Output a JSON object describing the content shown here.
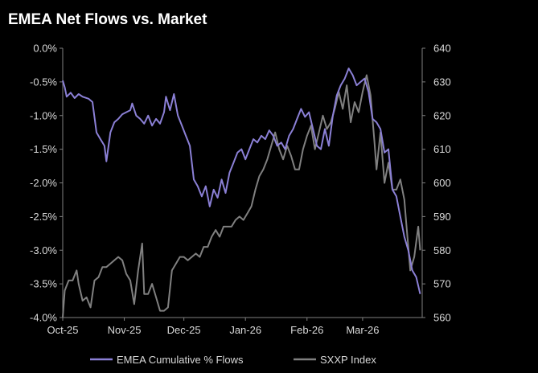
{
  "chart_data": {
    "type": "line",
    "title": "EMEA Net Flows vs. Market",
    "background": "#000000",
    "grid": false,
    "legend_position": "bottom",
    "x_axis": {
      "range": [
        "2025-10-01",
        "2026-03-31"
      ],
      "tick_labels": [
        "Oct-25",
        "Nov-25",
        "Dec-25",
        "Jan-26",
        "Feb-26",
        "Mar-26"
      ],
      "tick_dates": [
        "2025-10-01",
        "2025-11-01",
        "2025-12-01",
        "2026-01-01",
        "2026-02-01",
        "2026-03-01"
      ]
    },
    "y_left": {
      "range": [
        -4.0,
        0.0
      ],
      "ticks": [
        0.0,
        -0.5,
        -1.0,
        -1.5,
        -2.0,
        -2.5,
        -3.0,
        -3.5,
        -4.0
      ],
      "tick_labels": [
        "0.0%",
        "-0.5%",
        "-1.0%",
        "-1.5%",
        "-2.0%",
        "-2.5%",
        "-3.0%",
        "-3.5%",
        "-4.0%"
      ]
    },
    "y_right": {
      "range": [
        560,
        640
      ],
      "ticks": [
        640,
        630,
        620,
        610,
        600,
        590,
        580,
        570,
        560
      ],
      "tick_labels": [
        "640",
        "630",
        "620",
        "610",
        "600",
        "590",
        "580",
        "570",
        "560"
      ]
    },
    "series": [
      {
        "name": "EMEA Cumulative % Flows",
        "axis": "left",
        "color": "#8b80d6",
        "points": [
          [
            "2025-10-01",
            -0.48
          ],
          [
            "2025-10-02",
            -0.58
          ],
          [
            "2025-10-03",
            -0.72
          ],
          [
            "2025-10-05",
            -0.66
          ],
          [
            "2025-10-07",
            -0.74
          ],
          [
            "2025-10-09",
            -0.68
          ],
          [
            "2025-10-11",
            -0.72
          ],
          [
            "2025-10-14",
            -0.75
          ],
          [
            "2025-10-16",
            -0.8
          ],
          [
            "2025-10-18",
            -1.25
          ],
          [
            "2025-10-20",
            -1.35
          ],
          [
            "2025-10-22",
            -1.45
          ],
          [
            "2025-10-23",
            -1.68
          ],
          [
            "2025-10-25",
            -1.25
          ],
          [
            "2025-10-27",
            -1.1
          ],
          [
            "2025-10-29",
            -1.05
          ],
          [
            "2025-10-31",
            -0.98
          ],
          [
            "2025-11-02",
            -0.95
          ],
          [
            "2025-11-04",
            -0.92
          ],
          [
            "2025-11-05",
            -0.82
          ],
          [
            "2025-11-07",
            -1.0
          ],
          [
            "2025-11-09",
            -1.05
          ],
          [
            "2025-11-11",
            -1.12
          ],
          [
            "2025-11-13",
            -1.0
          ],
          [
            "2025-11-15",
            -1.15
          ],
          [
            "2025-11-17",
            -1.05
          ],
          [
            "2025-11-19",
            -1.12
          ],
          [
            "2025-11-21",
            -0.95
          ],
          [
            "2025-11-22",
            -0.72
          ],
          [
            "2025-11-24",
            -0.92
          ],
          [
            "2025-11-26",
            -0.68
          ],
          [
            "2025-11-28",
            -1.0
          ],
          [
            "2025-11-30",
            -1.15
          ],
          [
            "2025-12-02",
            -1.3
          ],
          [
            "2025-12-04",
            -1.45
          ],
          [
            "2025-12-06",
            -1.95
          ],
          [
            "2025-12-08",
            -2.05
          ],
          [
            "2025-12-10",
            -2.2
          ],
          [
            "2025-12-12",
            -2.05
          ],
          [
            "2025-12-14",
            -2.35
          ],
          [
            "2025-12-16",
            -2.1
          ],
          [
            "2025-12-18",
            -2.22
          ],
          [
            "2025-12-20",
            -1.95
          ],
          [
            "2025-12-22",
            -2.15
          ],
          [
            "2025-12-24",
            -1.85
          ],
          [
            "2025-12-26",
            -1.7
          ],
          [
            "2025-12-28",
            -1.55
          ],
          [
            "2025-12-30",
            -1.5
          ],
          [
            "2026-01-01",
            -1.65
          ],
          [
            "2026-01-03",
            -1.5
          ],
          [
            "2026-01-05",
            -1.35
          ],
          [
            "2026-01-07",
            -1.4
          ],
          [
            "2026-01-09",
            -1.3
          ],
          [
            "2026-01-11",
            -1.35
          ],
          [
            "2026-01-13",
            -1.22
          ],
          [
            "2026-01-15",
            -1.3
          ],
          [
            "2026-01-17",
            -1.45
          ],
          [
            "2026-01-19",
            -1.4
          ],
          [
            "2026-01-21",
            -1.5
          ],
          [
            "2026-01-23",
            -1.3
          ],
          [
            "2026-01-25",
            -1.2
          ],
          [
            "2026-01-27",
            -1.05
          ],
          [
            "2026-01-29",
            -0.9
          ],
          [
            "2026-01-31",
            -1.02
          ],
          [
            "2026-02-02",
            -0.95
          ],
          [
            "2026-02-04",
            -1.2
          ],
          [
            "2026-02-06",
            -1.45
          ],
          [
            "2026-02-08",
            -1.5
          ],
          [
            "2026-02-10",
            -1.2
          ],
          [
            "2026-02-12",
            -1.45
          ],
          [
            "2026-02-14",
            -1.0
          ],
          [
            "2026-02-16",
            -0.7
          ],
          [
            "2026-02-18",
            -0.55
          ],
          [
            "2026-02-20",
            -0.45
          ],
          [
            "2026-02-22",
            -0.3
          ],
          [
            "2026-02-24",
            -0.4
          ],
          [
            "2026-02-26",
            -0.55
          ],
          [
            "2026-02-28",
            -0.5
          ],
          [
            "2026-03-02",
            -0.45
          ],
          [
            "2026-03-04",
            -0.65
          ],
          [
            "2026-03-06",
            -1.05
          ],
          [
            "2026-03-08",
            -1.1
          ],
          [
            "2026-03-10",
            -1.2
          ],
          [
            "2026-03-12",
            -1.55
          ],
          [
            "2026-03-14",
            -1.5
          ],
          [
            "2026-03-16",
            -2.1
          ],
          [
            "2026-03-18",
            -2.2
          ],
          [
            "2026-03-20",
            -2.5
          ],
          [
            "2026-03-22",
            -2.8
          ],
          [
            "2026-03-24",
            -3.0
          ],
          [
            "2026-03-26",
            -3.3
          ],
          [
            "2026-03-28",
            -3.4
          ],
          [
            "2026-03-30",
            -3.65
          ]
        ]
      },
      {
        "name": "SXXP Index",
        "axis": "right",
        "color": "#808080",
        "points": [
          [
            "2025-10-01",
            560
          ],
          [
            "2025-10-02",
            568
          ],
          [
            "2025-10-04",
            571
          ],
          [
            "2025-10-06",
            571
          ],
          [
            "2025-10-08",
            574
          ],
          [
            "2025-10-09",
            570
          ],
          [
            "2025-10-11",
            565
          ],
          [
            "2025-10-13",
            566
          ],
          [
            "2025-10-15",
            563
          ],
          [
            "2025-10-17",
            571
          ],
          [
            "2025-10-19",
            572
          ],
          [
            "2025-10-21",
            575
          ],
          [
            "2025-10-23",
            575
          ],
          [
            "2025-10-25",
            576
          ],
          [
            "2025-10-27",
            577
          ],
          [
            "2025-10-29",
            578
          ],
          [
            "2025-10-31",
            577
          ],
          [
            "2025-11-02",
            573
          ],
          [
            "2025-11-04",
            571
          ],
          [
            "2025-11-06",
            564
          ],
          [
            "2025-11-08",
            574
          ],
          [
            "2025-11-10",
            582
          ],
          [
            "2025-11-11",
            567
          ],
          [
            "2025-11-13",
            567
          ],
          [
            "2025-11-15",
            570
          ],
          [
            "2025-11-17",
            566
          ],
          [
            "2025-11-19",
            562
          ],
          [
            "2025-11-21",
            562
          ],
          [
            "2025-11-23",
            563
          ],
          [
            "2025-11-25",
            574
          ],
          [
            "2025-11-27",
            576
          ],
          [
            "2025-11-29",
            578
          ],
          [
            "2025-12-01",
            578
          ],
          [
            "2025-12-03",
            577
          ],
          [
            "2025-12-05",
            578
          ],
          [
            "2025-12-07",
            579
          ],
          [
            "2025-12-09",
            578
          ],
          [
            "2025-12-11",
            581
          ],
          [
            "2025-12-13",
            581
          ],
          [
            "2025-12-15",
            584
          ],
          [
            "2025-12-17",
            586
          ],
          [
            "2025-12-19",
            584
          ],
          [
            "2025-12-21",
            587
          ],
          [
            "2025-12-23",
            587
          ],
          [
            "2025-12-25",
            587
          ],
          [
            "2025-12-27",
            589
          ],
          [
            "2025-12-29",
            590
          ],
          [
            "2025-12-31",
            589
          ],
          [
            "2026-01-02",
            591
          ],
          [
            "2026-01-04",
            593
          ],
          [
            "2026-01-06",
            598
          ],
          [
            "2026-01-08",
            602
          ],
          [
            "2026-01-10",
            604
          ],
          [
            "2026-01-12",
            607
          ],
          [
            "2026-01-14",
            611
          ],
          [
            "2026-01-16",
            615
          ],
          [
            "2026-01-18",
            610
          ],
          [
            "2026-01-20",
            607
          ],
          [
            "2026-01-22",
            611
          ],
          [
            "2026-01-24",
            608
          ],
          [
            "2026-01-26",
            604
          ],
          [
            "2026-01-28",
            604
          ],
          [
            "2026-01-30",
            610
          ],
          [
            "2026-02-01",
            614
          ],
          [
            "2026-02-03",
            617
          ],
          [
            "2026-02-05",
            610
          ],
          [
            "2026-02-07",
            615
          ],
          [
            "2026-02-09",
            620
          ],
          [
            "2026-02-11",
            616
          ],
          [
            "2026-02-13",
            618
          ],
          [
            "2026-02-15",
            622
          ],
          [
            "2026-02-17",
            627
          ],
          [
            "2026-02-19",
            622
          ],
          [
            "2026-02-21",
            629
          ],
          [
            "2026-02-23",
            618
          ],
          [
            "2026-02-25",
            624
          ],
          [
            "2026-02-27",
            621
          ],
          [
            "2026-03-01",
            627
          ],
          [
            "2026-03-03",
            632
          ],
          [
            "2026-03-05",
            626
          ],
          [
            "2026-03-07",
            612
          ],
          [
            "2026-03-08",
            604
          ],
          [
            "2026-03-10",
            615
          ],
          [
            "2026-03-12",
            600
          ],
          [
            "2026-03-14",
            606
          ],
          [
            "2026-03-16",
            598
          ],
          [
            "2026-03-18",
            598
          ],
          [
            "2026-03-20",
            601
          ],
          [
            "2026-03-22",
            595
          ],
          [
            "2026-03-23",
            588
          ],
          [
            "2026-03-25",
            574
          ],
          [
            "2026-03-27",
            578
          ],
          [
            "2026-03-29",
            587
          ],
          [
            "2026-03-30",
            580
          ]
        ]
      }
    ]
  }
}
